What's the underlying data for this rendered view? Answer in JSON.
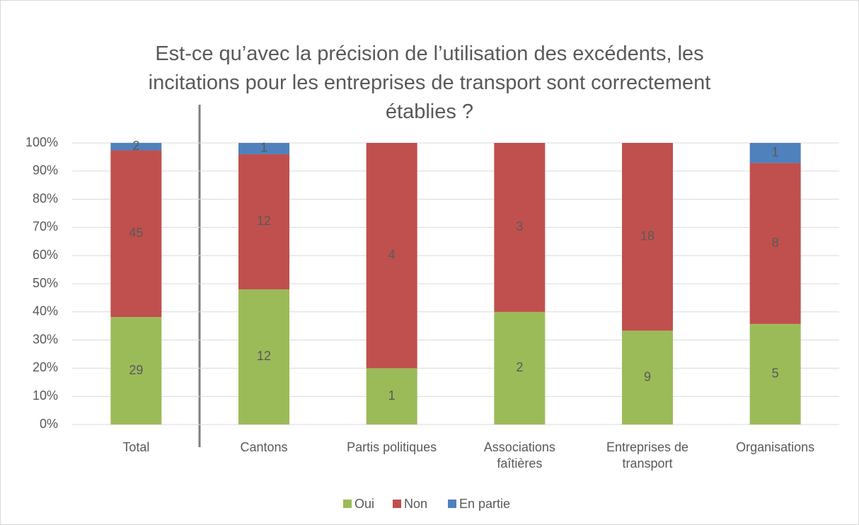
{
  "chart_data": {
    "type": "stacked_percent_bar",
    "title": "Est-ce qu’avec la précision de l’utilisation des excédents, les incitations pour les entreprises de transport sont correctement établies ?",
    "categories": [
      "Total",
      "Cantons",
      "Partis politiques",
      "Associations faîtières",
      "Entreprises de transport",
      "Organisations"
    ],
    "series": [
      {
        "name": "Oui",
        "color": "#9bbb59",
        "values": [
          29,
          12,
          1,
          2,
          9,
          5
        ]
      },
      {
        "name": "Non",
        "color": "#c0504d",
        "values": [
          45,
          12,
          4,
          3,
          18,
          8
        ]
      },
      {
        "name": "En partie",
        "color": "#4f81bd",
        "values": [
          2,
          1,
          null,
          null,
          null,
          1
        ]
      }
    ],
    "ylim": [
      0,
      100
    ],
    "yticks": [
      {
        "value": 0,
        "label": "0%"
      },
      {
        "value": 10,
        "label": "10%"
      },
      {
        "value": 20,
        "label": "20%"
      },
      {
        "value": 30,
        "label": "30%"
      },
      {
        "value": 40,
        "label": "40%"
      },
      {
        "value": 50,
        "label": "50%"
      },
      {
        "value": 60,
        "label": "60%"
      },
      {
        "value": 70,
        "label": "70%"
      },
      {
        "value": 80,
        "label": "80%"
      },
      {
        "value": 90,
        "label": "90%"
      },
      {
        "value": 100,
        "label": "100%"
      }
    ],
    "grid": true,
    "legend": "bottom"
  }
}
